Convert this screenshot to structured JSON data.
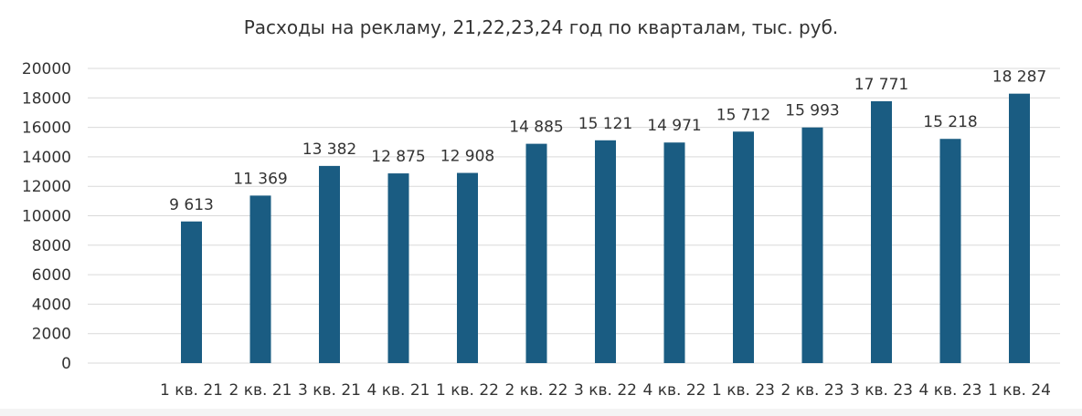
{
  "chart_data": {
    "type": "bar",
    "title": "Расходы на рекламу, 21,22,23,24 год по кварталам, тыс. руб.",
    "categories": [
      "1 кв. 21",
      "2 кв. 21",
      "3 кв. 21",
      "4 кв. 21",
      "1 кв. 22",
      "2 кв. 22",
      "3 кв. 22",
      "4 кв. 22",
      "1 кв. 23",
      "2 кв. 23",
      "3 кв. 23",
      "4 кв. 23",
      "1 кв. 24"
    ],
    "values": [
      9613,
      11369,
      13382,
      12875,
      12908,
      14885,
      15121,
      14971,
      15712,
      15993,
      17771,
      15218,
      18287
    ],
    "data_labels": [
      "9 613",
      "11 369",
      "13 382",
      "12 875",
      "12 908",
      "14 885",
      "15 121",
      "14 971",
      "15 712",
      "15 993",
      "17 771",
      "15 218",
      "18 287"
    ],
    "y_ticks": [
      "0",
      "2000",
      "4000",
      "6000",
      "8000",
      "10000",
      "12000",
      "14000",
      "16000",
      "18000",
      "20000"
    ],
    "xlabel": "",
    "ylabel": "",
    "ylim": [
      0,
      20000
    ],
    "grid": true,
    "legend": "none",
    "bar_color": "#1a5c82",
    "grid_color": "#d9d9d9"
  }
}
